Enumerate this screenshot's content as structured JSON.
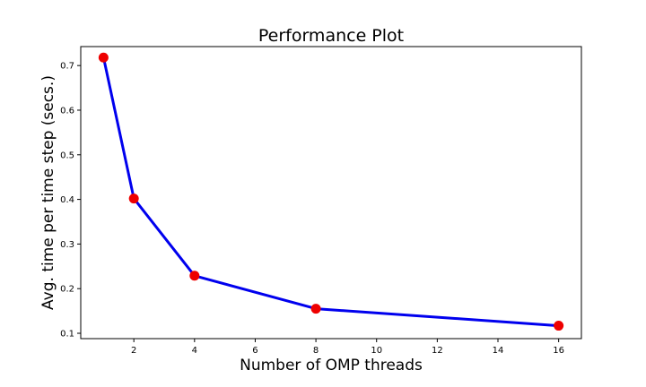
{
  "chart_data": {
    "type": "line",
    "title": "Performance Plot",
    "xlabel": "Number of OMP threads",
    "ylabel": "Avg. time per time step (secs.)",
    "xlim": [
      0.25,
      16.75
    ],
    "ylim": [
      0.088,
      0.7425
    ],
    "x_ticks": [
      2,
      4,
      6,
      8,
      10,
      12,
      14,
      16
    ],
    "y_ticks": [
      0.1,
      0.2,
      0.3,
      0.4,
      0.5,
      0.6,
      0.7
    ],
    "grid": false,
    "series": [
      {
        "x": [
          1,
          2,
          4,
          8,
          16
        ],
        "y": [
          0.718,
          0.402,
          0.229,
          0.155,
          0.117
        ],
        "line_color": "#0000ee",
        "marker_color": "#ee0000"
      }
    ]
  }
}
